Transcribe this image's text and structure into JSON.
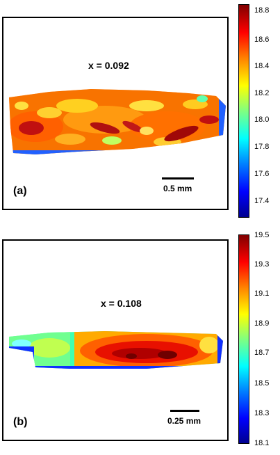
{
  "panels": [
    {
      "label": "(a)",
      "x_label": "x = 0.092",
      "scale_text": "0.5 mm",
      "colorbar": {
        "ticks": [
          "18.8",
          "18.6",
          "18.4",
          "18.2",
          "18.0",
          "17.8",
          "17.6",
          "17.4"
        ],
        "colormap": "jet"
      }
    },
    {
      "label": "(b)",
      "x_label": "x = 0.108",
      "scale_text": "0.25 mm",
      "colorbar": {
        "ticks": [
          "19.5",
          "19.3",
          "19.1",
          "18.9",
          "18.7",
          "18.5",
          "18.3",
          "18.1"
        ],
        "colormap": "jet"
      }
    }
  ],
  "colors": {
    "jet_low": "#00008f",
    "jet_mid": "#80ff80",
    "jet_high": "#800000"
  }
}
